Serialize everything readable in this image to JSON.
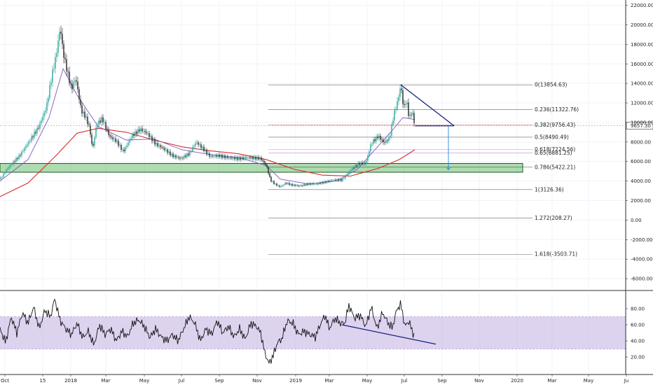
{
  "chart_data": [
    {
      "type": "candlestick",
      "title": "",
      "xlabel": "",
      "ylabel": "",
      "ylim": [
        -7000,
        22400
      ],
      "grid": true,
      "y_ticks": [
        {
          "value": 22000,
          "label": "22000.00"
        },
        {
          "value": 20000,
          "label": "20000.00"
        },
        {
          "value": 18000,
          "label": "18000.00"
        },
        {
          "value": 16000,
          "label": "16000.00"
        },
        {
          "value": 14000,
          "label": "14000.00"
        },
        {
          "value": 12000,
          "label": "12000.00"
        },
        {
          "value": 10000,
          "label": "10000.00"
        },
        {
          "value": 8000,
          "label": "8000.00"
        },
        {
          "value": 6000,
          "label": "6000.00"
        },
        {
          "value": 4000,
          "label": "4000.00"
        },
        {
          "value": 2000,
          "label": "2000.00"
        },
        {
          "value": 0,
          "label": "0.00"
        },
        {
          "value": -2000,
          "label": "-2000.00"
        },
        {
          "value": -4000,
          "label": "-4000.00"
        },
        {
          "value": -6000,
          "label": "-6000.00"
        }
      ],
      "last_price": {
        "value": 9657.3,
        "label": "9657.30"
      },
      "fib_levels": [
        {
          "ratio": "0",
          "value": 13854.63,
          "label": "0(13854.63)",
          "color": "#222222"
        },
        {
          "ratio": "0.236",
          "value": 11322.76,
          "label": "0.236(11322.76)",
          "color": "#222222"
        },
        {
          "ratio": "0.382",
          "value": 9756.43,
          "label": "0.382(9756.43)",
          "color": "#c0392b"
        },
        {
          "ratio": "0.5",
          "value": 8490.49,
          "label": "0.5(8490.49)",
          "color": "#222222"
        },
        {
          "ratio": "0.618",
          "value": 7224.56,
          "label": "0.618(7224.56)",
          "color": "#a35bd6"
        },
        {
          "ratio": "0.65",
          "value": 6881.25,
          "label": "0.65(6881.25)",
          "color": "#a35bd6"
        },
        {
          "ratio": "0.786",
          "value": 5422.21,
          "label": "0.786(5422.21)",
          "color": "#222222"
        },
        {
          "ratio": "1",
          "value": 3126.36,
          "label": "1(3126.36)",
          "color": "#222222"
        },
        {
          "ratio": "1.272",
          "value": 208.27,
          "label": "1.272(208.27)",
          "color": "#222222"
        },
        {
          "ratio": "1.618",
          "value": -3503.71,
          "label": "1.618(-3503.71)",
          "color": "#222222"
        }
      ],
      "support_zone": {
        "low": 4900,
        "high": 5800,
        "color": "#4caf50"
      },
      "price_path": [
        [
          0,
          4200
        ],
        [
          12,
          5400
        ],
        [
          28,
          6600
        ],
        [
          42,
          8100
        ],
        [
          55,
          9500
        ],
        [
          66,
          11500
        ],
        [
          74,
          14800
        ],
        [
          80,
          16800
        ],
        [
          86,
          19800
        ],
        [
          90,
          17200
        ],
        [
          96,
          15200
        ],
        [
          102,
          13400
        ],
        [
          108,
          14600
        ],
        [
          116,
          11200
        ],
        [
          122,
          10600
        ],
        [
          128,
          9400
        ],
        [
          132,
          7200
        ],
        [
          138,
          9800
        ],
        [
          146,
          10400
        ],
        [
          156,
          8600
        ],
        [
          166,
          8100
        ],
        [
          176,
          7000
        ],
        [
          188,
          8600
        ],
        [
          200,
          9300
        ],
        [
          210,
          8900
        ],
        [
          222,
          7800
        ],
        [
          234,
          7300
        ],
        [
          246,
          6600
        ],
        [
          258,
          6300
        ],
        [
          270,
          6800
        ],
        [
          280,
          8000
        ],
        [
          290,
          7300
        ],
        [
          300,
          6500
        ],
        [
          312,
          6600
        ],
        [
          324,
          6400
        ],
        [
          340,
          6300
        ],
        [
          356,
          6400
        ],
        [
          372,
          6300
        ],
        [
          380,
          5600
        ],
        [
          386,
          4100
        ],
        [
          392,
          3700
        ],
        [
          400,
          3400
        ],
        [
          408,
          3800
        ],
        [
          416,
          3600
        ],
        [
          428,
          3500
        ],
        [
          440,
          3700
        ],
        [
          452,
          3700
        ],
        [
          464,
          3900
        ],
        [
          476,
          4100
        ],
        [
          488,
          4100
        ],
        [
          500,
          5100
        ],
        [
          512,
          5800
        ],
        [
          522,
          5800
        ],
        [
          530,
          7900
        ],
        [
          540,
          8600
        ],
        [
          548,
          7900
        ],
        [
          556,
          8400
        ],
        [
          562,
          10800
        ],
        [
          568,
          12300
        ],
        [
          572,
          13850
        ],
        [
          576,
          11400
        ],
        [
          580,
          12300
        ],
        [
          584,
          10400
        ],
        [
          588,
          11200
        ],
        [
          592,
          9657
        ]
      ],
      "ma_fast": [
        [
          0,
          4000
        ],
        [
          40,
          6200
        ],
        [
          70,
          10500
        ],
        [
          90,
          15500
        ],
        [
          110,
          12800
        ],
        [
          140,
          9600
        ],
        [
          180,
          8200
        ],
        [
          220,
          8300
        ],
        [
          260,
          7200
        ],
        [
          300,
          6700
        ],
        [
          340,
          6400
        ],
        [
          380,
          5600
        ],
        [
          400,
          4200
        ],
        [
          440,
          3700
        ],
        [
          480,
          4000
        ],
        [
          510,
          5200
        ],
        [
          540,
          7600
        ],
        [
          560,
          9200
        ],
        [
          575,
          10500
        ],
        [
          592,
          10300
        ]
      ],
      "ma_slow": [
        [
          0,
          2400
        ],
        [
          40,
          3800
        ],
        [
          80,
          6600
        ],
        [
          110,
          8900
        ],
        [
          140,
          9400
        ],
        [
          180,
          9000
        ],
        [
          220,
          8200
        ],
        [
          260,
          7500
        ],
        [
          300,
          7100
        ],
        [
          340,
          6800
        ],
        [
          380,
          6200
        ],
        [
          420,
          5200
        ],
        [
          460,
          4600
        ],
        [
          500,
          4500
        ],
        [
          540,
          5300
        ],
        [
          570,
          6200
        ],
        [
          592,
          7200
        ]
      ],
      "triangle": {
        "upper": [
          [
            572,
            13854
          ],
          [
            648,
            9657
          ]
        ],
        "lower": [
          [
            592,
            9657
          ],
          [
            648,
            9657
          ]
        ],
        "target_arrow": [
          [
            640,
            9657
          ],
          [
            640,
            5150
          ]
        ]
      },
      "x_ticks": [
        {
          "label": "Oct",
          "pos": 7
        },
        {
          "label": "15",
          "pos": 61
        },
        {
          "label": "2018",
          "pos": 101
        },
        {
          "label": "Mar",
          "pos": 151
        },
        {
          "label": "May",
          "pos": 206
        },
        {
          "label": "Jul",
          "pos": 259
        },
        {
          "label": "Sep",
          "pos": 313
        },
        {
          "label": "Nov",
          "pos": 367
        },
        {
          "label": "2019",
          "pos": 422
        },
        {
          "label": "Mar",
          "pos": 470
        },
        {
          "label": "May",
          "pos": 524
        },
        {
          "label": "Jul",
          "pos": 577
        },
        {
          "label": "Sep",
          "pos": 631
        },
        {
          "label": "Nov",
          "pos": 684
        },
        {
          "label": "2020",
          "pos": 738
        },
        {
          "label": "Mar",
          "pos": 788
        },
        {
          "label": "May",
          "pos": 840
        },
        {
          "label": "Ju",
          "pos": 894
        }
      ]
    },
    {
      "type": "line",
      "title": "",
      "xlabel": "",
      "ylabel": "",
      "ylim": [
        0,
        100
      ],
      "band": [
        30,
        70
      ],
      "y_ticks": [
        {
          "value": 80,
          "label": "80.00"
        },
        {
          "value": 60,
          "label": "60.00"
        },
        {
          "value": 40,
          "label": "40.00"
        },
        {
          "value": 20,
          "label": "20.00"
        }
      ],
      "series": [
        {
          "values": [
            [
              0,
              55
            ],
            [
              8,
              38
            ],
            [
              16,
              70
            ],
            [
              24,
              50
            ],
            [
              32,
              75
            ],
            [
              40,
              62
            ],
            [
              48,
              82
            ],
            [
              56,
              55
            ],
            [
              64,
              78
            ],
            [
              72,
              70
            ],
            [
              78,
              92
            ],
            [
              86,
              65
            ],
            [
              94,
              55
            ],
            [
              102,
              48
            ],
            [
              110,
              62
            ],
            [
              118,
              44
            ],
            [
              126,
              52
            ],
            [
              134,
              35
            ],
            [
              142,
              60
            ],
            [
              150,
              48
            ],
            [
              158,
              55
            ],
            [
              166,
              40
            ],
            [
              174,
              52
            ],
            [
              182,
              45
            ],
            [
              190,
              62
            ],
            [
              198,
              66
            ],
            [
              206,
              58
            ],
            [
              214,
              44
            ],
            [
              222,
              55
            ],
            [
              230,
              45
            ],
            [
              238,
              40
            ],
            [
              246,
              48
            ],
            [
              254,
              40
            ],
            [
              262,
              55
            ],
            [
              270,
              70
            ],
            [
              278,
              62
            ],
            [
              286,
              40
            ],
            [
              294,
              55
            ],
            [
              302,
              48
            ],
            [
              310,
              65
            ],
            [
              318,
              50
            ],
            [
              326,
              58
            ],
            [
              334,
              45
            ],
            [
              342,
              55
            ],
            [
              350,
              42
            ],
            [
              358,
              62
            ],
            [
              366,
              58
            ],
            [
              372,
              50
            ],
            [
              378,
              25
            ],
            [
              384,
              12
            ],
            [
              390,
              22
            ],
            [
              396,
              38
            ],
            [
              402,
              42
            ],
            [
              410,
              65
            ],
            [
              418,
              62
            ],
            [
              426,
              48
            ],
            [
              434,
              52
            ],
            [
              442,
              48
            ],
            [
              450,
              45
            ],
            [
              458,
              62
            ],
            [
              464,
              72
            ],
            [
              470,
              55
            ],
            [
              478,
              68
            ],
            [
              486,
              62
            ],
            [
              492,
              62
            ],
            [
              498,
              84
            ],
            [
              506,
              68
            ],
            [
              514,
              72
            ],
            [
              522,
              58
            ],
            [
              530,
              82
            ],
            [
              538,
              55
            ],
            [
              546,
              75
            ],
            [
              554,
              62
            ],
            [
              560,
              56
            ],
            [
              566,
              78
            ],
            [
              572,
              86
            ],
            [
              578,
              58
            ],
            [
              584,
              65
            ],
            [
              588,
              52
            ],
            [
              592,
              46
            ]
          ]
        }
      ],
      "divergence_line": [
        [
          488,
          60
        ],
        [
          622,
          36
        ]
      ]
    }
  ]
}
